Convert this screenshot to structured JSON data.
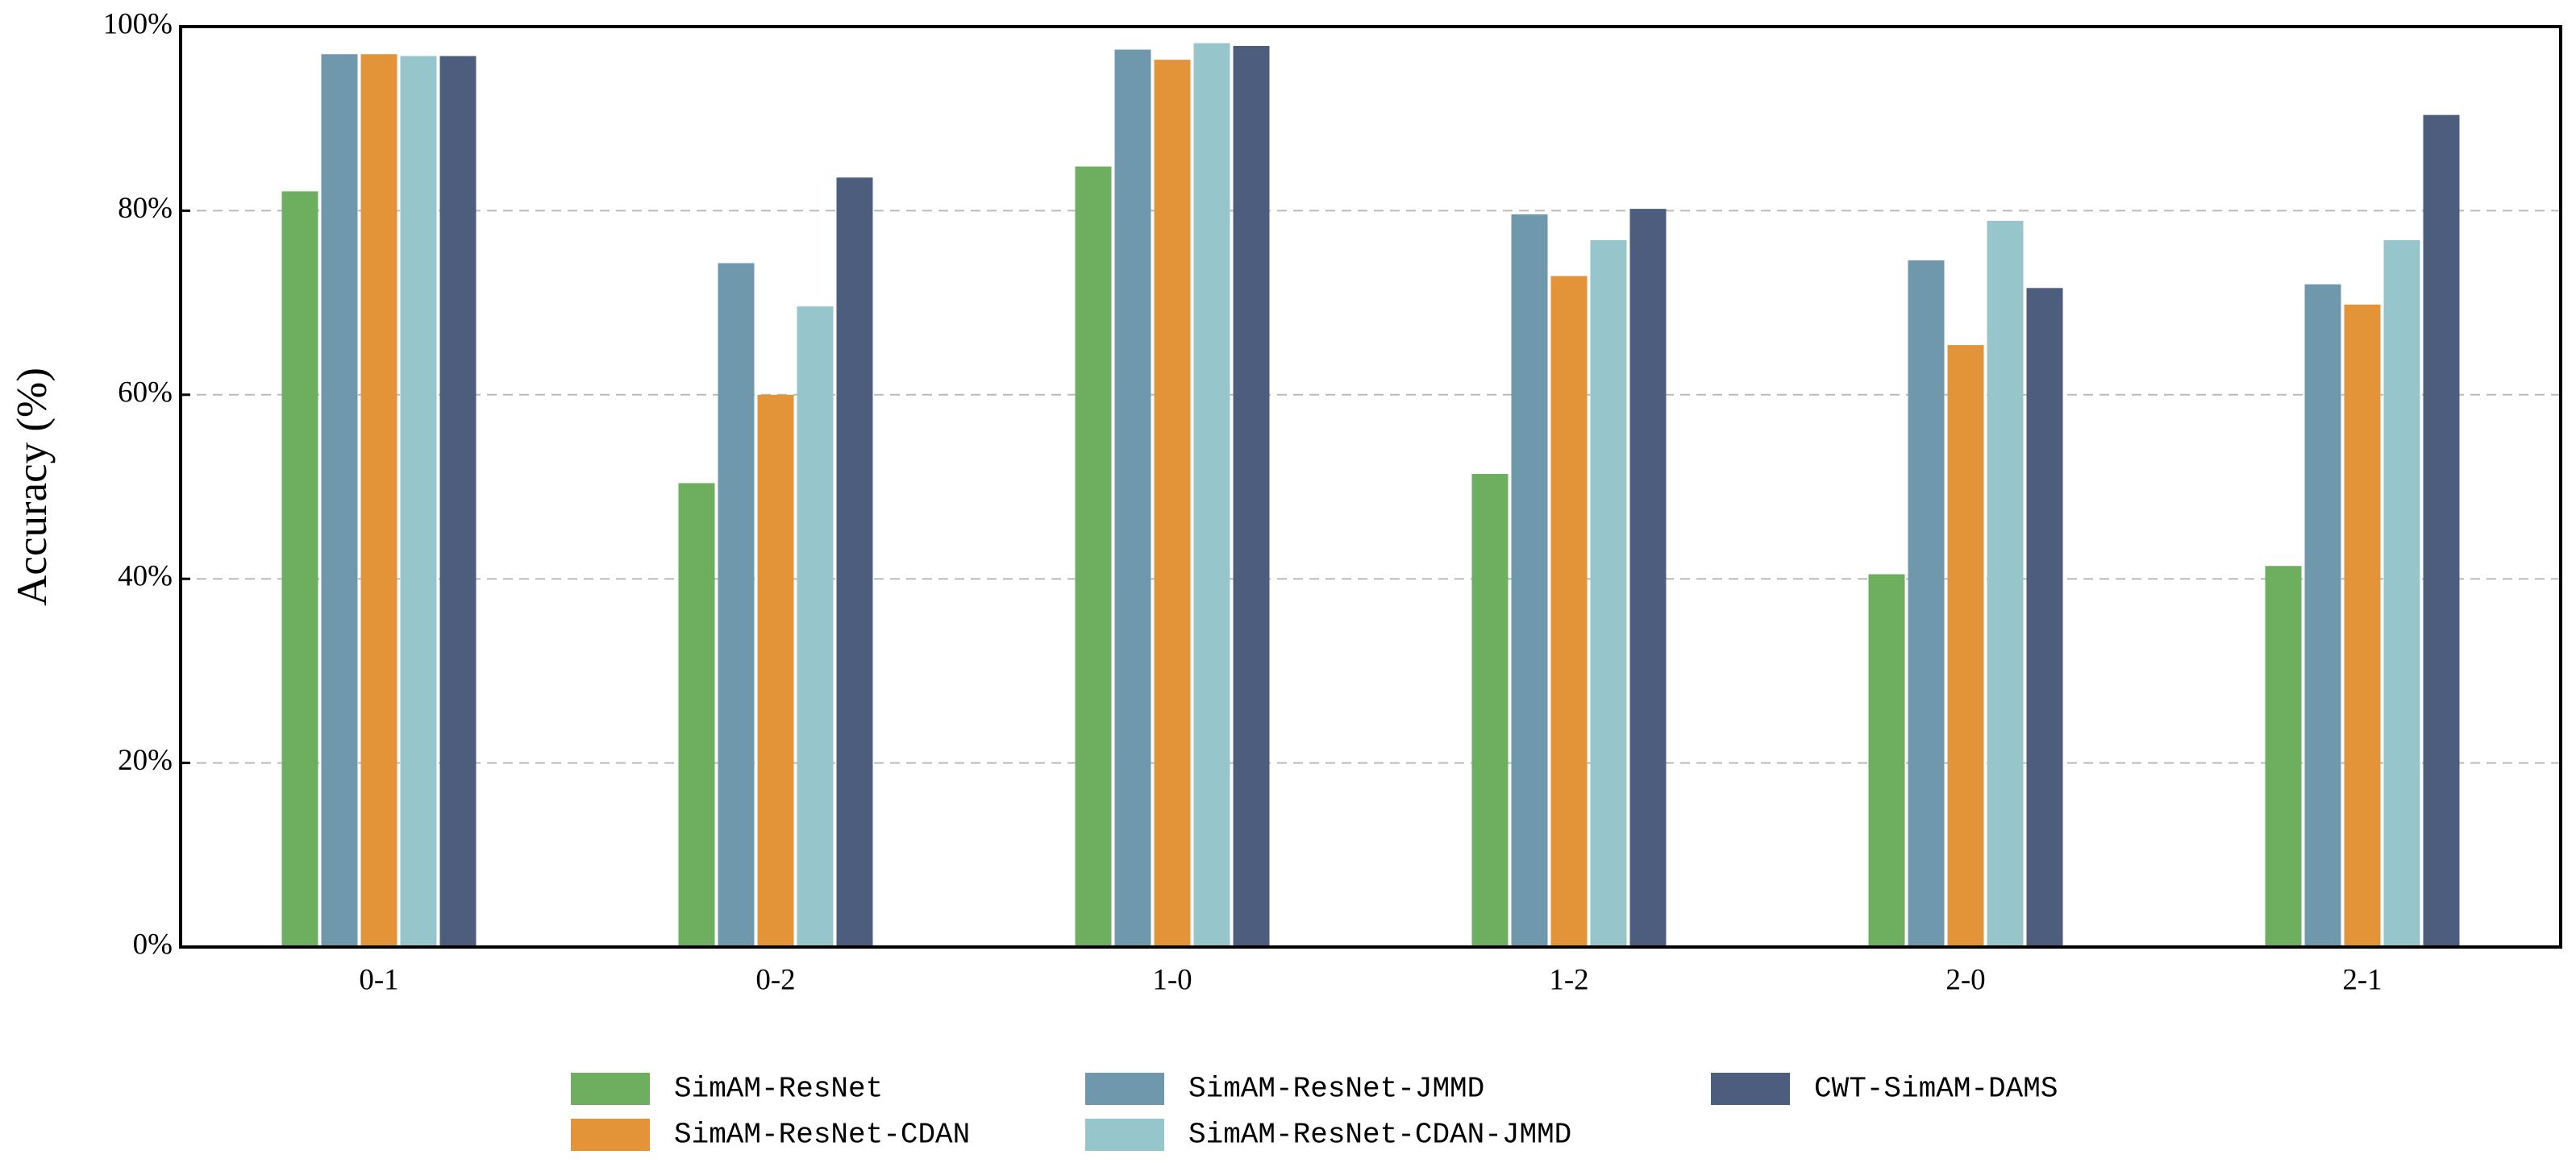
{
  "chart_data": {
    "type": "bar",
    "y_label": "Accuracy (%)",
    "categories": [
      "0-1",
      "0-2",
      "1-0",
      "1-2",
      "2-0",
      "2-1"
    ],
    "series": [
      {
        "name": "SimAM-ResNet",
        "color": "#6daf5f",
        "values": [
          82.1,
          50.4,
          84.8,
          51.4,
          40.5,
          41.4
        ]
      },
      {
        "name": "SimAM-ResNet-JMMD",
        "color": "#6f98ad",
        "values": [
          97.0,
          74.3,
          97.5,
          79.6,
          74.6,
          72.0
        ]
      },
      {
        "name": "SimAM-ResNet-CDAN",
        "color": "#e39338",
        "values": [
          97.0,
          60.0,
          96.4,
          72.9,
          65.4,
          69.8
        ]
      },
      {
        "name": "SimAM-ResNet-CDAN-JMMD",
        "color": "#96c6cb",
        "values": [
          96.8,
          69.6,
          98.2,
          76.8,
          78.9,
          76.8
        ]
      },
      {
        "name": "CWT-SimAM-DAMS",
        "color": "#4d5d7e",
        "values": [
          96.8,
          83.6,
          97.9,
          80.2,
          71.6,
          90.4
        ]
      }
    ],
    "ylim": [
      0,
      100
    ],
    "yticks": [
      {
        "value": 0,
        "label": "0%"
      },
      {
        "value": 20,
        "label": "20%"
      },
      {
        "value": 40,
        "label": "40%"
      },
      {
        "value": 60,
        "label": "60%"
      },
      {
        "value": 80,
        "label": "80%"
      },
      {
        "value": 100,
        "label": "100%"
      }
    ],
    "grid": true
  }
}
